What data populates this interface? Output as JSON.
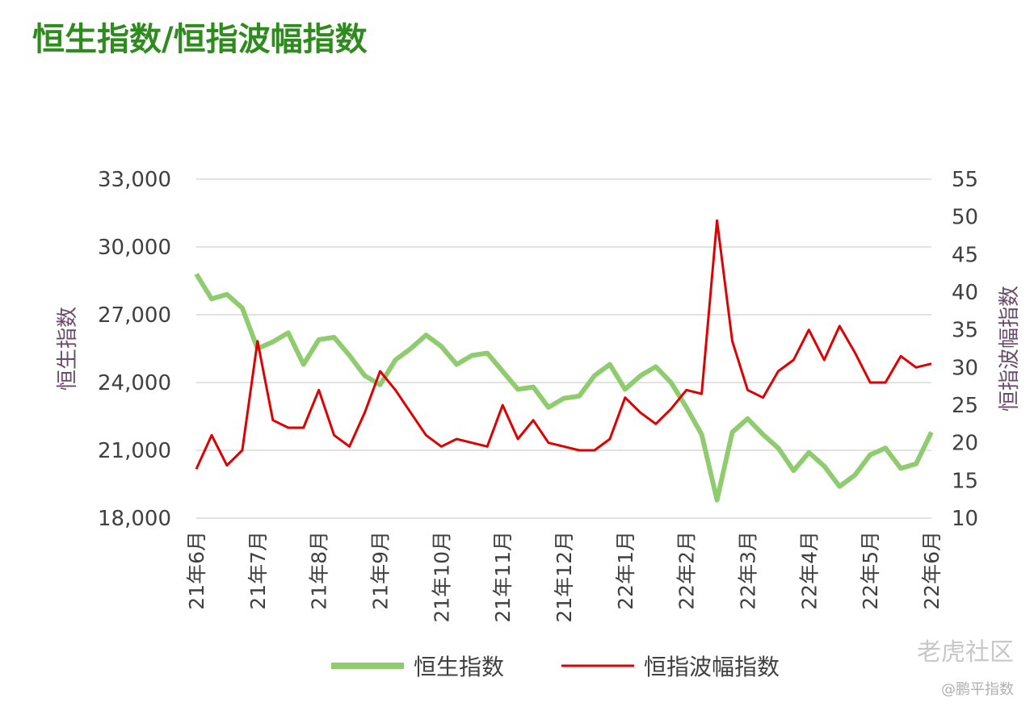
{
  "chart_data": {
    "type": "line",
    "title": "恒生指数/恒指波幅指数",
    "y_label": "恒生指数",
    "y2_label": "恒指波幅指数",
    "categories": [
      "21年6月",
      null,
      null,
      null,
      "21年7月",
      null,
      null,
      null,
      "21年8月",
      null,
      null,
      null,
      "21年9月",
      null,
      null,
      null,
      "21年10月",
      null,
      null,
      null,
      "21年11月",
      null,
      null,
      null,
      "21年12月",
      null,
      null,
      null,
      "22年1月",
      null,
      null,
      null,
      "22年2月",
      null,
      null,
      null,
      "22年3月",
      null,
      null,
      null,
      "22年4月",
      null,
      null,
      null,
      "22年5月",
      null,
      null,
      null,
      "22年6月"
    ],
    "series": [
      {
        "name": "恒生指数",
        "color": "#8fcc6f",
        "axis": "y",
        "values": [
          28800,
          27700,
          27900,
          27300,
          25500,
          25800,
          26200,
          24800,
          25900,
          26000,
          25200,
          24300,
          23900,
          25000,
          25500,
          26100,
          25600,
          24800,
          25200,
          25300,
          24500,
          23700,
          23800,
          22900,
          23300,
          23400,
          24300,
          24800,
          23700,
          24300,
          24700,
          24000,
          22900,
          21700,
          18800,
          21800,
          22400,
          21700,
          21100,
          20100,
          20900,
          20300,
          19400,
          19900,
          20800,
          21100,
          20200,
          20400,
          21800
        ]
      },
      {
        "name": "恒指波幅指数",
        "color": "#e00000",
        "axis": "y2",
        "values": [
          16.5,
          21,
          17,
          19,
          33.5,
          23,
          22,
          22,
          27,
          21,
          19.5,
          24,
          29.5,
          27,
          24,
          21,
          19.5,
          20.5,
          20,
          19.5,
          25,
          20.5,
          23,
          20,
          19.5,
          19,
          19,
          20.5,
          26,
          24,
          22.5,
          24.5,
          27,
          26.5,
          49.5,
          33.5,
          27,
          26,
          29.5,
          31,
          35,
          31,
          35.5,
          32,
          28,
          28,
          31.5,
          30,
          30.5
        ]
      }
    ],
    "ylim": [
      18000,
      33000
    ],
    "yticks": [
      {
        "value": 18000,
        "label": "18,000"
      },
      {
        "value": 21000,
        "label": "21,000"
      },
      {
        "value": 24000,
        "label": "24,000"
      },
      {
        "value": 27000,
        "label": "27,000"
      },
      {
        "value": 30000,
        "label": "30,000"
      },
      {
        "value": 33000,
        "label": "33,000"
      }
    ],
    "y2lim": [
      10,
      55
    ],
    "y2ticks": [
      10,
      15,
      20,
      25,
      30,
      35,
      40,
      45,
      50,
      55
    ],
    "grid": true,
    "legend": "bottom",
    "watermark": "老虎社区",
    "credit": "@鹏平指数"
  }
}
